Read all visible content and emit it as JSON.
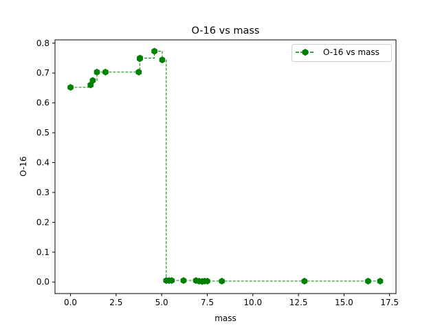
{
  "chart_data": {
    "type": "line",
    "title": "O-16 vs mass",
    "xlabel": "mass",
    "ylabel": "O-16",
    "xlim": [
      -0.85,
      17.85
    ],
    "ylim": [
      -0.0386,
      0.811
    ],
    "xticks": [
      0,
      2.5,
      5,
      7.5,
      10,
      12.5,
      15,
      17.5
    ],
    "xtick_labels": [
      "0.0",
      "2.5",
      "5.0",
      "7.5",
      "10.0",
      "12.5",
      "15.0",
      "17.5"
    ],
    "yticks": [
      0,
      0.1,
      0.2,
      0.3,
      0.4,
      0.5,
      0.6,
      0.7,
      0.8
    ],
    "ytick_labels": [
      "0.0",
      "0.1",
      "0.2",
      "0.3",
      "0.4",
      "0.5",
      "0.6",
      "0.7",
      "0.8"
    ],
    "grid": false,
    "legend_position": "upper right",
    "series": [
      {
        "name": "O-16 vs mass",
        "color": "#008000",
        "line_style": "dashed",
        "drawstyle": "steps-post",
        "marker": "hexagon",
        "x": [
          0.0,
          1.1,
          1.22,
          1.45,
          1.92,
          3.74,
          3.8,
          3.81,
          4.6,
          5.03,
          5.25,
          5.4,
          5.55,
          6.2,
          6.88,
          7.05,
          7.22,
          7.35,
          7.5,
          8.3,
          12.83,
          16.32,
          16.98
        ],
        "y": [
          0.652,
          0.66,
          0.675,
          0.703,
          0.703,
          0.703,
          0.748,
          0.75,
          0.773,
          0.744,
          0.005,
          0.005,
          0.005,
          0.005,
          0.005,
          0.003,
          0.002,
          0.003,
          0.003,
          0.003,
          0.003,
          0.003,
          0.003
        ]
      }
    ]
  }
}
